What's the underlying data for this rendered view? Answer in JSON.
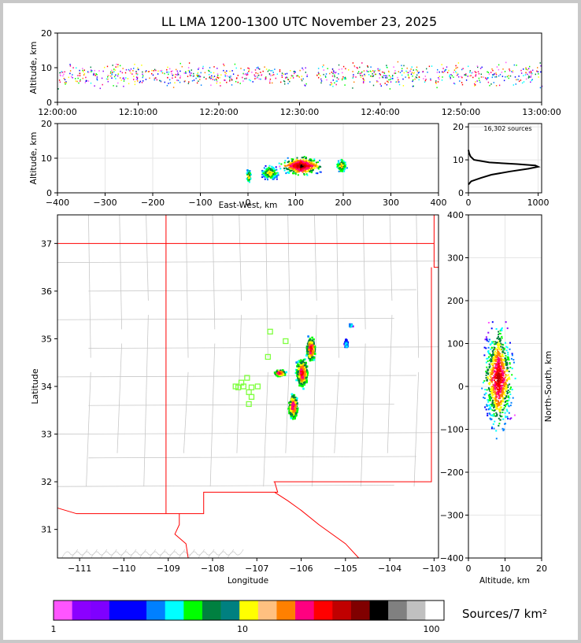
{
  "title": "LL LMA 1200-1300 UTC November 23, 2025",
  "sources_annotation": "16,302 sources",
  "chart_data": [
    {
      "name": "time_height",
      "type": "scatter",
      "xlabel": "",
      "ylabel": "Altitude, km",
      "xlim": [
        "12:00:00",
        "13:00:00"
      ],
      "ylim": [
        0,
        20
      ],
      "x_ticks": [
        "12:00:00",
        "12:10:00",
        "12:20:00",
        "12:30:00",
        "12:40:00",
        "12:50:00",
        "13:00:00"
      ],
      "y_ticks": [
        0,
        10,
        20
      ],
      "typical_altitude_km": [
        4,
        12
      ]
    },
    {
      "name": "east_west_height",
      "type": "heatmap",
      "xlabel": "East-West, km",
      "ylabel": "Altitude, km",
      "xlim": [
        -400,
        400
      ],
      "ylim": [
        0,
        20
      ],
      "x_ticks": [
        -400,
        -300,
        -200,
        -100,
        0,
        100,
        200,
        300,
        400
      ],
      "y_ticks": [
        0,
        10,
        20
      ],
      "clusters": [
        {
          "x_km": 0,
          "alt_km": 5
        },
        {
          "x_km": 45,
          "alt_km": 6
        },
        {
          "x_km": 110,
          "alt_km": 8
        },
        {
          "x_km": 195,
          "alt_km": 8
        }
      ]
    },
    {
      "name": "altitude_histogram",
      "type": "line",
      "xlabel": "",
      "ylabel": "",
      "xlim": [
        0,
        1050
      ],
      "ylim": [
        0,
        21
      ],
      "x_ticks": [
        0,
        1000
      ],
      "y_ticks": [
        0,
        10,
        20
      ],
      "profile": [
        {
          "alt": 2.5,
          "count": 0
        },
        {
          "alt": 3.5,
          "count": 40
        },
        {
          "alt": 4.5,
          "count": 180
        },
        {
          "alt": 5.5,
          "count": 330
        },
        {
          "alt": 6.5,
          "count": 600
        },
        {
          "alt": 7.3,
          "count": 860
        },
        {
          "alt": 7.9,
          "count": 1000
        },
        {
          "alt": 8.3,
          "count": 960
        },
        {
          "alt": 8.7,
          "count": 700
        },
        {
          "alt": 9.2,
          "count": 300
        },
        {
          "alt": 10,
          "count": 80
        },
        {
          "alt": 11,
          "count": 30
        },
        {
          "alt": 12,
          "count": 10
        },
        {
          "alt": 13,
          "count": 0
        }
      ]
    },
    {
      "name": "plan_view",
      "type": "heatmap",
      "xlabel": "Longitude",
      "ylabel": "Latitude",
      "xlim": [
        -111.5,
        -102.9
      ],
      "ylim": [
        30.4,
        37.6
      ],
      "x_ticks": [
        -111,
        -110,
        -109,
        -108,
        -107,
        -106,
        -105,
        -104,
        -103
      ],
      "y_ticks": [
        31,
        32,
        33,
        34,
        35,
        36,
        37
      ],
      "clusters": [
        {
          "lon": -106.2,
          "lat": 33.6,
          "hot": true
        },
        {
          "lon": -106.0,
          "lat": 34.3,
          "hot": true
        },
        {
          "lon": -105.8,
          "lat": 34.8,
          "hot": true
        },
        {
          "lon": -106.5,
          "lat": 34.3,
          "hot": true
        },
        {
          "lon": -105.0,
          "lat": 34.9,
          "hot": false
        },
        {
          "lon": -104.9,
          "lat": 35.3,
          "hot": false
        }
      ],
      "stations": [
        {
          "lon": -106.7,
          "lat": 35.15
        },
        {
          "lon": -106.35,
          "lat": 34.95
        },
        {
          "lon": -106.75,
          "lat": 34.62
        },
        {
          "lon": -107.22,
          "lat": 34.18
        },
        {
          "lon": -107.35,
          "lat": 34.08
        },
        {
          "lon": -107.42,
          "lat": 33.98
        },
        {
          "lon": -107.48,
          "lat": 34.0
        },
        {
          "lon": -107.3,
          "lat": 34.0
        },
        {
          "lon": -107.12,
          "lat": 33.98
        },
        {
          "lon": -106.98,
          "lat": 34.0
        },
        {
          "lon": -107.18,
          "lat": 33.88
        },
        {
          "lon": -107.12,
          "lat": 33.78
        },
        {
          "lon": -107.18,
          "lat": 33.63
        }
      ]
    },
    {
      "name": "height_north_south",
      "type": "heatmap",
      "xlabel": "Altitude, km",
      "ylabel": "North-South, km",
      "xlim": [
        0,
        20
      ],
      "ylim": [
        -400,
        400
      ],
      "x_ticks": [
        0,
        10,
        20
      ],
      "y_ticks": [
        -400,
        -300,
        -200,
        -100,
        0,
        100,
        200,
        300,
        400
      ]
    },
    {
      "name": "colorbar",
      "type": "heatmap",
      "label": "Sources/7 km²",
      "tick_labels": [
        "1",
        "10",
        "100"
      ],
      "colors": [
        "#ff55ff",
        "#8b00ff",
        "#7f00ff",
        "#0000ff",
        "#0000ff",
        "#0080ff",
        "#00ffff",
        "#00ff00",
        "#008040",
        "#008080",
        "#ffff00",
        "#ffc080",
        "#ff8000",
        "#ff0080",
        "#ff0000",
        "#c00000",
        "#800000",
        "#000000",
        "#808080",
        "#c0c0c0",
        "#ffffff"
      ]
    }
  ]
}
